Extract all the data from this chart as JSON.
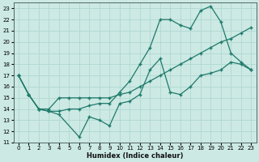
{
  "xlabel": "Humidex (Indice chaleur)",
  "xlim": [
    -0.5,
    23.5
  ],
  "ylim": [
    11,
    23.5
  ],
  "yticks": [
    11,
    12,
    13,
    14,
    15,
    16,
    17,
    18,
    19,
    20,
    21,
    22,
    23
  ],
  "xticks": [
    0,
    1,
    2,
    3,
    4,
    5,
    6,
    7,
    8,
    9,
    10,
    11,
    12,
    13,
    14,
    15,
    16,
    17,
    18,
    19,
    20,
    21,
    22,
    23
  ],
  "bg_color": "#cce9e4",
  "grid_color": "#b0d8d2",
  "line_color": "#1e7a6a",
  "line1_x": [
    0,
    1,
    2,
    3,
    4,
    5,
    6,
    7,
    8,
    9,
    10,
    11,
    12,
    13,
    14,
    15,
    16,
    17,
    18,
    19,
    20,
    21,
    22,
    23
  ],
  "line1_y": [
    17,
    15.3,
    14.0,
    14.0,
    15.0,
    15.0,
    15.0,
    15.0,
    15.0,
    15.0,
    15.3,
    15.5,
    16.0,
    16.5,
    17.0,
    17.5,
    18.0,
    18.5,
    19.0,
    19.5,
    20.0,
    20.3,
    20.8,
    21.3
  ],
  "line2_x": [
    0,
    1,
    2,
    3,
    4,
    5,
    6,
    7,
    8,
    9,
    10,
    11,
    12,
    13,
    14,
    15,
    16,
    17,
    18,
    19,
    20,
    21,
    22,
    23
  ],
  "line2_y": [
    17,
    15.3,
    14.0,
    13.8,
    13.8,
    14.0,
    14.0,
    14.3,
    14.5,
    14.5,
    15.5,
    16.5,
    18.0,
    19.5,
    22.0,
    22.0,
    21.5,
    21.2,
    22.8,
    23.2,
    21.8,
    19.0,
    18.2,
    17.5
  ],
  "line3_x": [
    0,
    1,
    2,
    3,
    4,
    6,
    7,
    8,
    9,
    10,
    11,
    12,
    13,
    14,
    15,
    16,
    17,
    18,
    19,
    20,
    21,
    22,
    23
  ],
  "line3_y": [
    17,
    15.3,
    14.0,
    13.8,
    13.5,
    11.5,
    13.3,
    13.0,
    12.5,
    14.5,
    14.7,
    15.3,
    17.5,
    18.5,
    15.5,
    15.3,
    16.0,
    17.0,
    17.2,
    17.5,
    18.2,
    18.0,
    17.5
  ]
}
